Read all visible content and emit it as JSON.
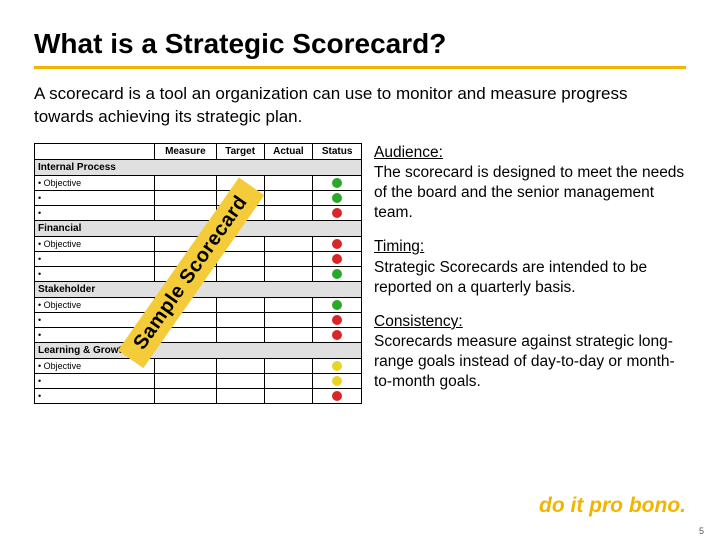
{
  "title": "What is a Strategic Scorecard?",
  "intro": "A scorecard is a tool an organization can use to monitor and measure progress towards achieving its strategic plan.",
  "table": {
    "headers": [
      "",
      "Measure",
      "Target",
      "Actual",
      "Status"
    ],
    "sections": [
      {
        "name": "Internal Process",
        "rows": [
          {
            "label": "• Objective",
            "status_color": "#2aa82a"
          },
          {
            "label": "•",
            "status_color": "#2aa82a"
          },
          {
            "label": "•",
            "status_color": "#d92626"
          }
        ]
      },
      {
        "name": "Financial",
        "rows": [
          {
            "label": "• Objective",
            "status_color": "#d92626"
          },
          {
            "label": "•",
            "status_color": "#d92626"
          },
          {
            "label": "•",
            "status_color": "#2aa82a"
          }
        ]
      },
      {
        "name": "Stakeholder",
        "rows": [
          {
            "label": "• Objective",
            "status_color": "#2aa82a"
          },
          {
            "label": "•",
            "status_color": "#d92626"
          },
          {
            "label": "•",
            "status_color": "#d92626"
          }
        ]
      },
      {
        "name": "Learning & Growth",
        "rows": [
          {
            "label": "• Objective",
            "status_color": "#e8d327"
          },
          {
            "label": "•",
            "status_color": "#e8d327"
          },
          {
            "label": "•",
            "status_color": "#d92626"
          }
        ]
      }
    ]
  },
  "watermark": "Sample Scorecard",
  "blocks": {
    "audience": {
      "hdr": "Audience:",
      "body": "The scorecard is designed to meet the needs of the board and the senior management team."
    },
    "timing": {
      "hdr": "Timing:",
      "body": "Strategic Scorecards are intended to be reported on a quarterly basis."
    },
    "consistency": {
      "hdr": "Consistency:",
      "body": "Scorecards measure against strategic long-range goals instead of day-to-day or month-to-month goals."
    }
  },
  "footer_tag": "do it pro bono.",
  "page_num": "5",
  "colors": {
    "accent": "#f2b400",
    "section_bg": "#e0e0e0",
    "border": "#000000"
  }
}
